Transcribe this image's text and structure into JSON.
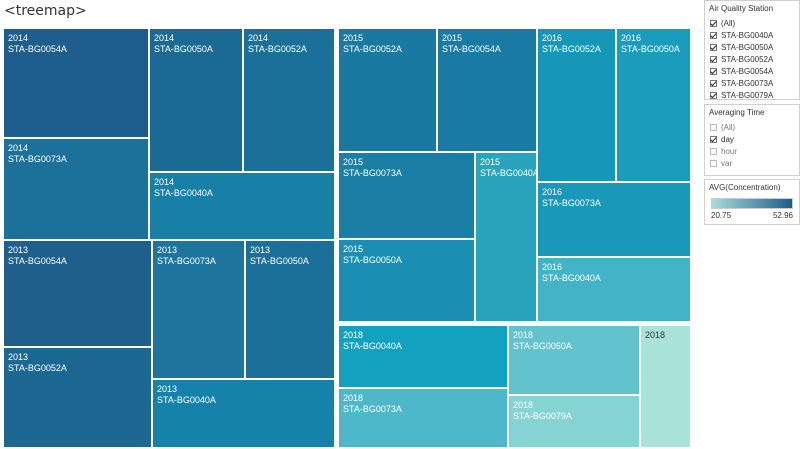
{
  "sheet_title": "<treemap>",
  "treemap": {
    "cells": [
      {
        "year": "2014",
        "station": "STA-BG0054A",
        "value": 52.96,
        "color": "#1d5e8c"
      },
      {
        "year": "2014",
        "station": "STA-BG0050A",
        "value": 45,
        "color": "#1b6a94"
      },
      {
        "year": "2014",
        "station": "STA-BG0052A",
        "value": 43,
        "color": "#1a7098"
      },
      {
        "year": "2014",
        "station": "STA-BG0073A",
        "value": 40,
        "color": "#1b7199"
      },
      {
        "year": "2014",
        "station": "STA-BG0040A",
        "value": 36,
        "color": "#187fa6"
      },
      {
        "year": "2013",
        "station": "STA-BG0054A",
        "value": 52,
        "color": "#1f5f8b"
      },
      {
        "year": "2013",
        "station": "STA-BG0073A",
        "value": 41,
        "color": "#1d749d"
      },
      {
        "year": "2013",
        "station": "STA-BG0050A",
        "value": 40,
        "color": "#1b7099"
      },
      {
        "year": "2013",
        "station": "STA-BG0052A",
        "value": 44,
        "color": "#1d6893"
      },
      {
        "year": "2013",
        "station": "STA-BG0040A",
        "value": 35,
        "color": "#1582a9"
      },
      {
        "year": "2015",
        "station": "STA-BG0052A",
        "value": 40,
        "color": "#1979a1"
      },
      {
        "year": "2015",
        "station": "STA-BG0054A",
        "value": 39,
        "color": "#197ba3"
      },
      {
        "year": "2015",
        "station": "STA-BG0073A",
        "value": 37,
        "color": "#1a7ea5"
      },
      {
        "year": "2015",
        "station": "STA-BG0040A",
        "value": 31,
        "color": "#2aa4bd"
      },
      {
        "year": "2015",
        "station": "STA-BG0050A",
        "value": 34,
        "color": "#1a8fb3"
      },
      {
        "year": "2016",
        "station": "STA-BG0052A",
        "value": 33,
        "color": "#1696b8"
      },
      {
        "year": "2016",
        "station": "STA-BG0050A",
        "value": 32,
        "color": "#1a9cbc"
      },
      {
        "year": "2016",
        "station": "STA-BG0073A",
        "value": 33,
        "color": "#1a98b9"
      },
      {
        "year": "2016",
        "station": "STA-BG0040A",
        "value": 29,
        "color": "#43b4c8"
      },
      {
        "year": "2018",
        "station": "STA-BG0040A",
        "value": 31,
        "color": "#13a1c0"
      },
      {
        "year": "2018",
        "station": "STA-BG0050A",
        "value": 26,
        "color": "#62c2cd"
      },
      {
        "year": "2018",
        "station": "STA-BG0073A",
        "value": 28,
        "color": "#4cb8c9"
      },
      {
        "year": "2018",
        "station": "STA-BG0079A",
        "value": 24,
        "color": "#86d3d3"
      },
      {
        "year": "2018",
        "station": "",
        "value": 20.75,
        "color": "#a9e2d6",
        "dark": true
      }
    ]
  },
  "filters": {
    "station": {
      "title": "Air Quality Station",
      "options": [
        {
          "label": "(All)",
          "checked": true
        },
        {
          "label": "STA-BG0040A",
          "checked": true
        },
        {
          "label": "STA-BG0050A",
          "checked": true
        },
        {
          "label": "STA-BG0052A",
          "checked": true
        },
        {
          "label": "STA-BG0054A",
          "checked": true
        },
        {
          "label": "STA-BG0073A",
          "checked": true
        },
        {
          "label": "STA-BG0079A",
          "checked": true
        }
      ]
    },
    "averaging": {
      "title": "Averaging Time",
      "options": [
        {
          "label": "(All)",
          "checked": false
        },
        {
          "label": "day",
          "checked": true
        },
        {
          "label": "hour",
          "checked": false
        },
        {
          "label": "var",
          "checked": false
        }
      ]
    }
  },
  "legend": {
    "title": "AVG(Concentration)",
    "min": "20.75",
    "max": "52.96",
    "color_min": "#a5ddd9",
    "color_max": "#1d5e8c"
  }
}
